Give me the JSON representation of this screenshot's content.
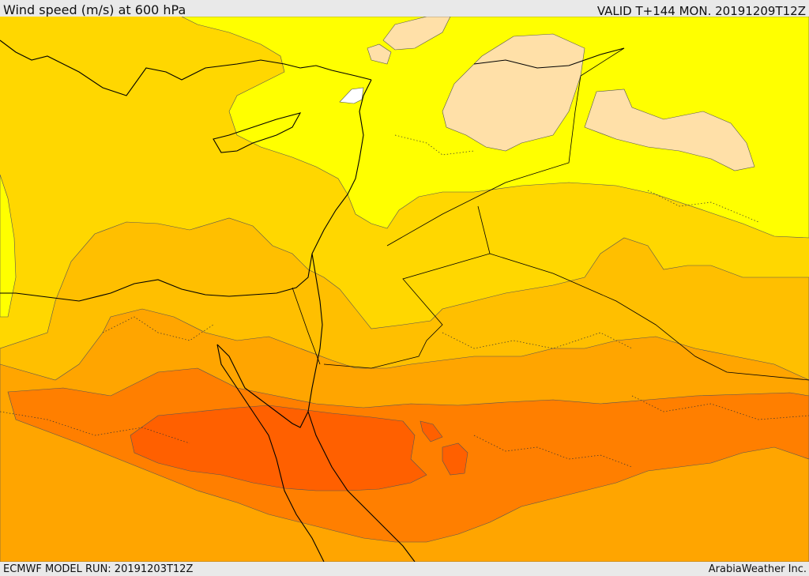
{
  "header": {
    "title": "Wind speed (m/s) at 600 hPa",
    "valid_time": "VALID T+144 MON. 20191209T12Z"
  },
  "footer": {
    "model_run": "ECMWF MODEL RUN: 20191203T12Z",
    "credit": "ArabiaWeather Inc."
  },
  "colors": {
    "lt_10": "#ffffff",
    "band_10_15": "#ffe0a8",
    "band_15_20": "#ffff00",
    "band_20_25": "#ffd700",
    "band_25_30": "#ffbf00",
    "band_30_35": "#ffa500",
    "band_35_40": "#ff7f00",
    "band_40_45": "#ff6000",
    "coast": "#000000",
    "border": "#000000"
  }
}
